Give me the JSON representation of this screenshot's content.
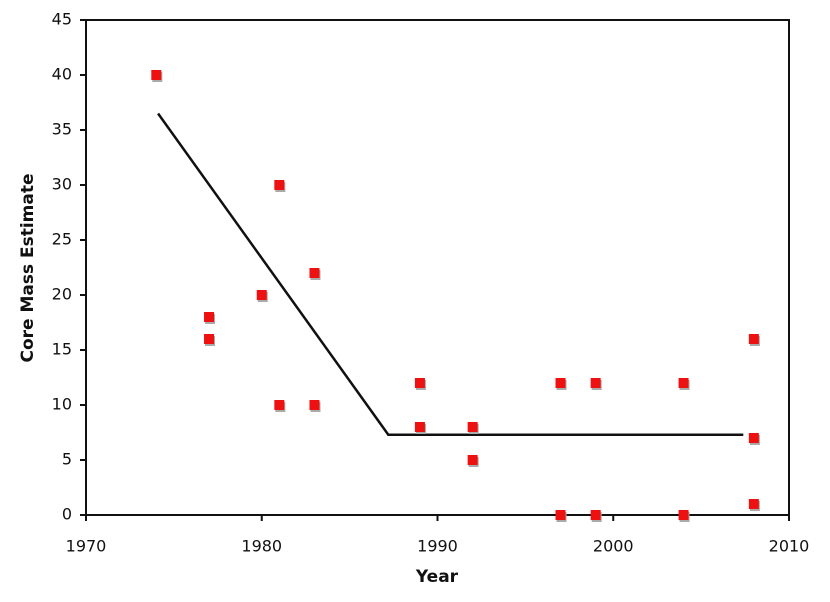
{
  "chart_data": {
    "type": "scatter",
    "x_label": "Year",
    "y_label": "Core Mass Estimate",
    "x": [
      1974,
      1977,
      1977,
      1980,
      1981,
      1981,
      1983,
      1983,
      1989,
      1989,
      1992,
      1992,
      1997,
      1997,
      1999,
      1999,
      2004,
      2004,
      2008,
      2008,
      2008
    ],
    "values": [
      40,
      18,
      16,
      20,
      30,
      10,
      22,
      10,
      12,
      8,
      8,
      5,
      12,
      0,
      12,
      0,
      12,
      0,
      16,
      7,
      1
    ],
    "color": "#ee1111",
    "trend": {
      "x": [
        1974.1,
        1987.2,
        2007.4
      ],
      "values": [
        36.5,
        7.3,
        7.3
      ],
      "color": "#111111"
    },
    "xlim": [
      1970,
      2010
    ],
    "xticks": [
      1970,
      1980,
      1990,
      2000,
      2010
    ],
    "ylim": [
      0,
      45
    ],
    "yticks": [
      0,
      5,
      10,
      15,
      20,
      25,
      30,
      35,
      40,
      45
    ]
  }
}
